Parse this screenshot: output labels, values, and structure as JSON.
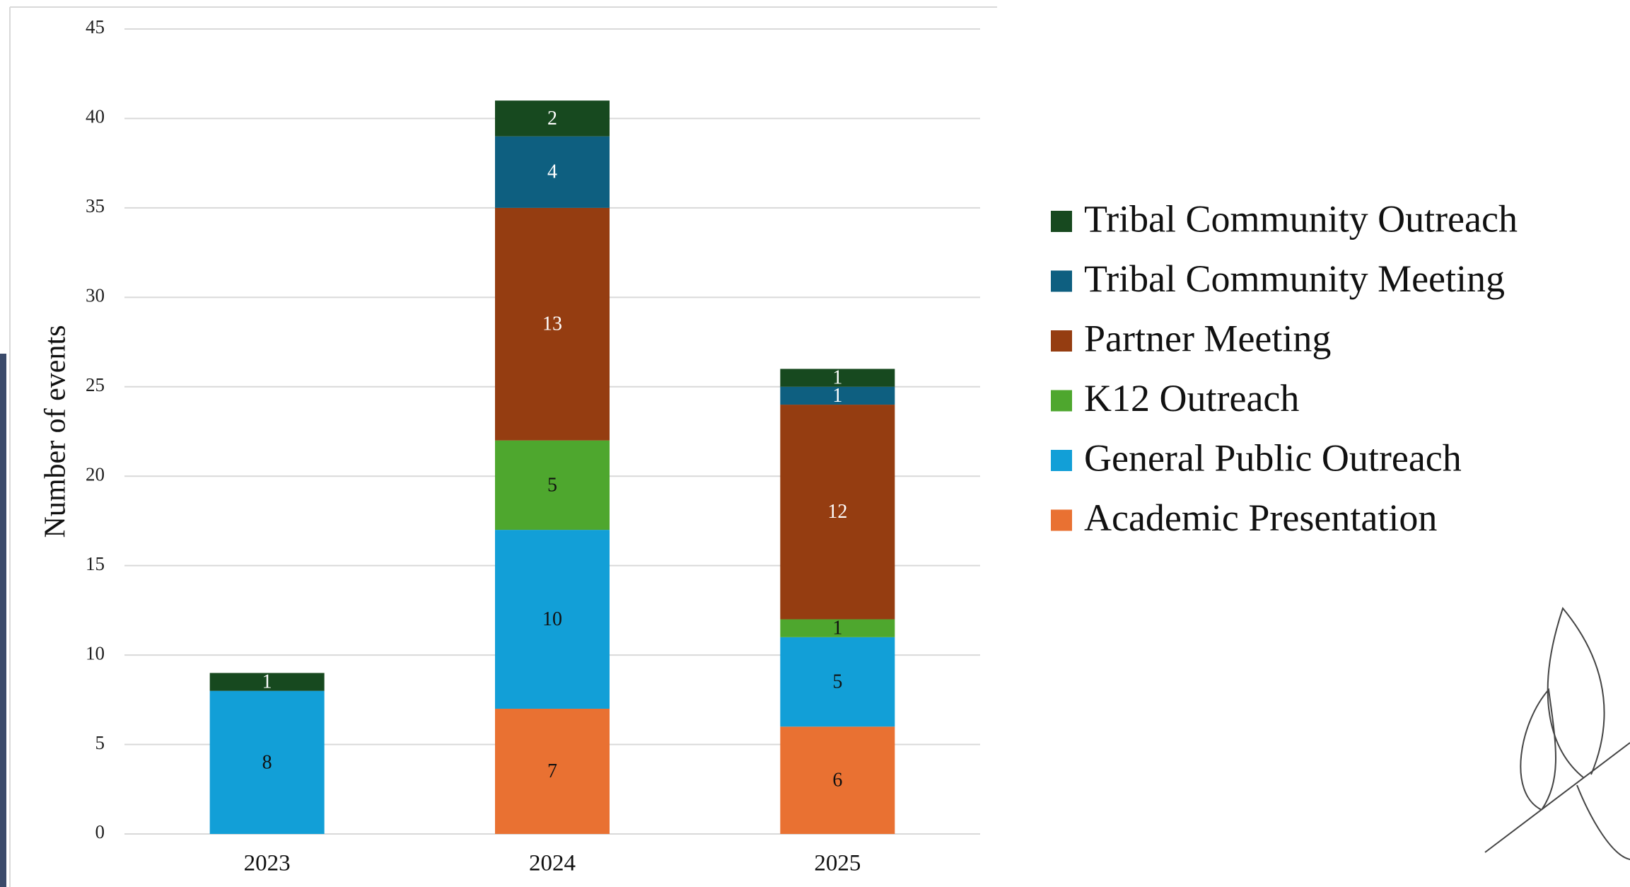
{
  "chart_data": {
    "type": "stacked_bar",
    "y_label": "Number of events",
    "categories": [
      "2023",
      "2024",
      "2025"
    ],
    "series": [
      {
        "name": "Academic Presentation",
        "color": "#e97132",
        "label_color": "#111111",
        "values": [
          0,
          7,
          6
        ]
      },
      {
        "name": "General Public Outreach",
        "color": "#129fd7",
        "label_color": "#111111",
        "values": [
          8,
          10,
          5
        ]
      },
      {
        "name": "K12 Outreach",
        "color": "#4ea72e",
        "label_color": "#111111",
        "values": [
          0,
          5,
          1
        ]
      },
      {
        "name": "Partner Meeting",
        "color": "#953d11",
        "label_color": "#ffffff",
        "values": [
          0,
          13,
          12
        ]
      },
      {
        "name": "Tribal Community Meeting",
        "color": "#0e5f80",
        "label_color": "#ffffff",
        "values": [
          0,
          4,
          1
        ]
      },
      {
        "name": "Tribal Community Outreach",
        "color": "#17491f",
        "label_color": "#ffffff",
        "values": [
          1,
          2,
          1
        ]
      }
    ],
    "ylim": [
      0,
      45
    ],
    "yticks": [
      0,
      5,
      10,
      15,
      20,
      25,
      30,
      35,
      40,
      45
    ],
    "grid": true,
    "legend": "right"
  }
}
